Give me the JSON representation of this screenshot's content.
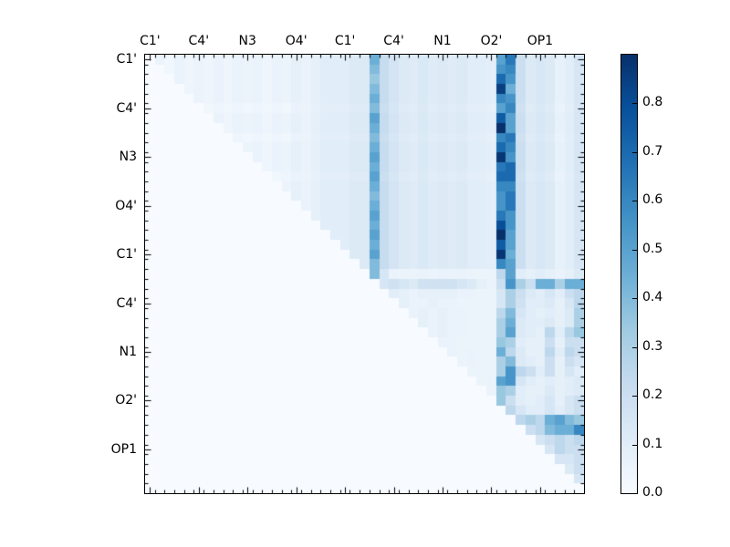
{
  "figure": {
    "background": "#ffffff"
  },
  "chart_data": {
    "type": "heatmap",
    "title": "",
    "n": 45,
    "group_size": 5,
    "x_tick_labels": [
      "C1'",
      "C4'",
      "N3",
      "O4'",
      "C1'",
      "C4'",
      "N1",
      "O2'",
      "OP1"
    ],
    "y_tick_labels": [
      "C1'",
      "C4'",
      "N3",
      "O4'",
      "C1'",
      "C4'",
      "N1",
      "O2'",
      "OP1"
    ],
    "labeled_cells": [
      0,
      5,
      10,
      15,
      20,
      25,
      30,
      35,
      40
    ],
    "vmin": 0.0,
    "vmax": 0.9,
    "colormap": "Blues",
    "colormap_stops": [
      "#f7fbff",
      "#deebf7",
      "#c6dbef",
      "#9ecae1",
      "#6baed6",
      "#4292c6",
      "#2171b5",
      "#08519c",
      "#08306b"
    ],
    "colorbar": {
      "tick_labels": [
        "0.0",
        "0.1",
        "0.2",
        "0.3",
        "0.4",
        "0.5",
        "0.6",
        "0.7",
        "0.8"
      ]
    },
    "matrix_form": "upper_triangle_rows",
    "values_upper": [
      [
        0.05,
        0.03,
        0.06,
        0.04,
        0.05,
        0.04,
        0.06,
        0.04,
        0.06,
        0.05,
        0.06,
        0.04,
        0.06,
        0.05,
        0.08,
        0.06,
        0.08,
        0.1,
        0.1,
        0.1,
        0.12,
        0.12,
        0.45,
        0.22,
        0.16,
        0.12,
        0.11,
        0.13,
        0.11,
        0.12,
        0.11,
        0.12,
        0.1,
        0.1,
        0.09,
        0.5,
        0.65,
        0.2,
        0.12,
        0.14,
        0.12,
        0.07,
        0.1,
        0.15
      ],
      [
        0.03,
        0.06,
        0.04,
        0.05,
        0.04,
        0.06,
        0.04,
        0.06,
        0.05,
        0.06,
        0.04,
        0.06,
        0.05,
        0.08,
        0.06,
        0.08,
        0.1,
        0.1,
        0.1,
        0.12,
        0.12,
        0.4,
        0.22,
        0.16,
        0.12,
        0.11,
        0.13,
        0.11,
        0.12,
        0.11,
        0.12,
        0.1,
        0.1,
        0.09,
        0.55,
        0.6,
        0.2,
        0.12,
        0.14,
        0.12,
        0.07,
        0.1,
        0.15
      ],
      [
        0.06,
        0.04,
        0.05,
        0.04,
        0.06,
        0.04,
        0.06,
        0.05,
        0.06,
        0.04,
        0.06,
        0.05,
        0.08,
        0.06,
        0.08,
        0.1,
        0.1,
        0.1,
        0.12,
        0.12,
        0.35,
        0.22,
        0.16,
        0.12,
        0.11,
        0.13,
        0.11,
        0.12,
        0.11,
        0.12,
        0.1,
        0.1,
        0.09,
        0.7,
        0.55,
        0.2,
        0.12,
        0.14,
        0.12,
        0.07,
        0.1,
        0.15
      ],
      [
        0.04,
        0.05,
        0.04,
        0.06,
        0.04,
        0.06,
        0.05,
        0.06,
        0.04,
        0.06,
        0.05,
        0.08,
        0.06,
        0.08,
        0.1,
        0.1,
        0.1,
        0.12,
        0.12,
        0.4,
        0.22,
        0.16,
        0.12,
        0.11,
        0.13,
        0.11,
        0.12,
        0.11,
        0.12,
        0.1,
        0.1,
        0.09,
        0.85,
        0.45,
        0.2,
        0.12,
        0.14,
        0.12,
        0.07,
        0.1,
        0.15
      ],
      [
        0.05,
        0.04,
        0.06,
        0.04,
        0.06,
        0.05,
        0.06,
        0.04,
        0.06,
        0.05,
        0.08,
        0.06,
        0.08,
        0.1,
        0.1,
        0.1,
        0.12,
        0.12,
        0.45,
        0.22,
        0.16,
        0.12,
        0.11,
        0.13,
        0.11,
        0.12,
        0.11,
        0.12,
        0.1,
        0.1,
        0.09,
        0.6,
        0.55,
        0.2,
        0.12,
        0.14,
        0.12,
        0.07,
        0.1,
        0.15
      ],
      [
        0.03,
        0.04,
        0.03,
        0.04,
        0.03,
        0.04,
        0.03,
        0.04,
        0.03,
        0.06,
        0.05,
        0.07,
        0.09,
        0.09,
        0.09,
        0.11,
        0.11,
        0.4,
        0.2,
        0.15,
        0.11,
        0.1,
        0.12,
        0.1,
        0.11,
        0.1,
        0.11,
        0.09,
        0.09,
        0.08,
        0.5,
        0.6,
        0.18,
        0.11,
        0.13,
        0.11,
        0.06,
        0.09,
        0.14
      ],
      [
        0.06,
        0.04,
        0.06,
        0.05,
        0.06,
        0.04,
        0.06,
        0.05,
        0.08,
        0.06,
        0.08,
        0.1,
        0.1,
        0.1,
        0.12,
        0.12,
        0.5,
        0.22,
        0.16,
        0.12,
        0.11,
        0.13,
        0.11,
        0.12,
        0.11,
        0.12,
        0.1,
        0.1,
        0.09,
        0.75,
        0.5,
        0.2,
        0.12,
        0.14,
        0.12,
        0.07,
        0.1,
        0.15
      ],
      [
        0.04,
        0.06,
        0.05,
        0.06,
        0.04,
        0.06,
        0.05,
        0.08,
        0.06,
        0.08,
        0.1,
        0.1,
        0.1,
        0.12,
        0.12,
        0.45,
        0.22,
        0.16,
        0.12,
        0.11,
        0.13,
        0.11,
        0.12,
        0.11,
        0.12,
        0.1,
        0.1,
        0.09,
        0.9,
        0.5,
        0.2,
        0.12,
        0.14,
        0.12,
        0.07,
        0.1,
        0.15
      ],
      [
        0.04,
        0.03,
        0.04,
        0.03,
        0.04,
        0.03,
        0.06,
        0.05,
        0.07,
        0.09,
        0.09,
        0.09,
        0.11,
        0.11,
        0.4,
        0.2,
        0.15,
        0.11,
        0.1,
        0.12,
        0.1,
        0.11,
        0.1,
        0.11,
        0.09,
        0.09,
        0.08,
        0.6,
        0.65,
        0.18,
        0.11,
        0.13,
        0.11,
        0.06,
        0.09,
        0.14
      ],
      [
        0.05,
        0.06,
        0.04,
        0.06,
        0.05,
        0.08,
        0.06,
        0.08,
        0.1,
        0.1,
        0.1,
        0.12,
        0.12,
        0.45,
        0.22,
        0.16,
        0.12,
        0.11,
        0.13,
        0.11,
        0.12,
        0.11,
        0.12,
        0.1,
        0.1,
        0.09,
        0.7,
        0.6,
        0.2,
        0.12,
        0.14,
        0.12,
        0.07,
        0.1,
        0.15
      ],
      [
        0.06,
        0.04,
        0.06,
        0.05,
        0.08,
        0.06,
        0.08,
        0.1,
        0.1,
        0.1,
        0.12,
        0.12,
        0.5,
        0.22,
        0.16,
        0.12,
        0.11,
        0.13,
        0.11,
        0.12,
        0.11,
        0.12,
        0.1,
        0.1,
        0.09,
        0.88,
        0.55,
        0.2,
        0.12,
        0.14,
        0.12,
        0.07,
        0.1,
        0.15
      ],
      [
        0.04,
        0.06,
        0.05,
        0.08,
        0.06,
        0.08,
        0.1,
        0.1,
        0.1,
        0.12,
        0.12,
        0.45,
        0.22,
        0.16,
        0.12,
        0.11,
        0.13,
        0.11,
        0.12,
        0.11,
        0.12,
        0.1,
        0.1,
        0.09,
        0.65,
        0.7,
        0.2,
        0.12,
        0.14,
        0.12,
        0.07,
        0.1,
        0.15
      ],
      [
        0.03,
        0.04,
        0.06,
        0.05,
        0.07,
        0.09,
        0.09,
        0.09,
        0.11,
        0.11,
        0.5,
        0.2,
        0.15,
        0.11,
        0.1,
        0.12,
        0.1,
        0.11,
        0.1,
        0.11,
        0.09,
        0.09,
        0.08,
        0.7,
        0.7,
        0.18,
        0.11,
        0.13,
        0.11,
        0.06,
        0.09,
        0.14
      ],
      [
        0.05,
        0.08,
        0.06,
        0.08,
        0.1,
        0.1,
        0.1,
        0.12,
        0.12,
        0.45,
        0.22,
        0.16,
        0.12,
        0.11,
        0.13,
        0.11,
        0.12,
        0.11,
        0.12,
        0.1,
        0.1,
        0.09,
        0.6,
        0.6,
        0.2,
        0.12,
        0.14,
        0.12,
        0.07,
        0.1,
        0.15
      ],
      [
        0.08,
        0.06,
        0.08,
        0.1,
        0.1,
        0.1,
        0.12,
        0.12,
        0.4,
        0.22,
        0.16,
        0.12,
        0.11,
        0.13,
        0.11,
        0.12,
        0.11,
        0.12,
        0.1,
        0.1,
        0.09,
        0.55,
        0.65,
        0.2,
        0.12,
        0.14,
        0.12,
        0.07,
        0.1,
        0.15
      ],
      [
        0.06,
        0.08,
        0.1,
        0.1,
        0.1,
        0.12,
        0.12,
        0.45,
        0.22,
        0.16,
        0.12,
        0.11,
        0.13,
        0.11,
        0.12,
        0.11,
        0.12,
        0.1,
        0.1,
        0.09,
        0.55,
        0.65,
        0.2,
        0.12,
        0.14,
        0.12,
        0.07,
        0.1,
        0.15
      ],
      [
        0.08,
        0.1,
        0.1,
        0.1,
        0.12,
        0.12,
        0.5,
        0.22,
        0.16,
        0.12,
        0.11,
        0.13,
        0.11,
        0.12,
        0.11,
        0.12,
        0.1,
        0.1,
        0.09,
        0.65,
        0.55,
        0.2,
        0.12,
        0.14,
        0.12,
        0.07,
        0.1,
        0.15
      ],
      [
        0.1,
        0.1,
        0.1,
        0.12,
        0.12,
        0.45,
        0.22,
        0.16,
        0.12,
        0.11,
        0.13,
        0.11,
        0.12,
        0.11,
        0.12,
        0.1,
        0.1,
        0.09,
        0.8,
        0.55,
        0.2,
        0.12,
        0.14,
        0.12,
        0.07,
        0.1,
        0.15
      ],
      [
        0.1,
        0.1,
        0.12,
        0.12,
        0.5,
        0.22,
        0.16,
        0.12,
        0.11,
        0.13,
        0.11,
        0.12,
        0.11,
        0.12,
        0.1,
        0.1,
        0.09,
        0.9,
        0.5,
        0.2,
        0.12,
        0.14,
        0.12,
        0.07,
        0.1,
        0.15
      ],
      [
        0.1,
        0.12,
        0.12,
        0.45,
        0.22,
        0.16,
        0.12,
        0.11,
        0.13,
        0.11,
        0.12,
        0.11,
        0.12,
        0.1,
        0.1,
        0.09,
        0.75,
        0.5,
        0.2,
        0.12,
        0.14,
        0.12,
        0.07,
        0.1,
        0.15
      ],
      [
        0.12,
        0.12,
        0.5,
        0.22,
        0.16,
        0.12,
        0.11,
        0.13,
        0.11,
        0.12,
        0.11,
        0.12,
        0.1,
        0.1,
        0.09,
        0.88,
        0.45,
        0.2,
        0.12,
        0.14,
        0.12,
        0.07,
        0.1,
        0.15
      ],
      [
        0.12,
        0.4,
        0.22,
        0.16,
        0.12,
        0.11,
        0.13,
        0.11,
        0.12,
        0.11,
        0.12,
        0.1,
        0.1,
        0.09,
        0.6,
        0.5,
        0.2,
        0.12,
        0.14,
        0.12,
        0.07,
        0.1,
        0.15
      ],
      [
        0.4,
        0.15,
        0.06,
        0.05,
        0.05,
        0.06,
        0.05,
        0.06,
        0.05,
        0.06,
        0.05,
        0.05,
        0.05,
        0.25,
        0.5,
        0.1,
        0.08,
        0.1,
        0.08,
        0.06,
        0.08,
        0.12
      ],
      [
        0.15,
        0.18,
        0.15,
        0.12,
        0.18,
        0.18,
        0.18,
        0.18,
        0.15,
        0.12,
        0.08,
        0.06,
        0.2,
        0.55,
        0.3,
        0.2,
        0.45,
        0.45,
        0.3,
        0.45,
        0.45
      ],
      [
        0.1,
        0.08,
        0.06,
        0.08,
        0.08,
        0.08,
        0.08,
        0.06,
        0.06,
        0.05,
        0.05,
        0.15,
        0.3,
        0.2,
        0.12,
        0.1,
        0.15,
        0.1,
        0.2,
        0.25
      ],
      [
        0.08,
        0.06,
        0.06,
        0.08,
        0.06,
        0.06,
        0.05,
        0.05,
        0.05,
        0.05,
        0.15,
        0.3,
        0.18,
        0.1,
        0.1,
        0.12,
        0.08,
        0.15,
        0.25
      ],
      [
        0.06,
        0.08,
        0.06,
        0.08,
        0.06,
        0.06,
        0.05,
        0.05,
        0.05,
        0.25,
        0.4,
        0.15,
        0.1,
        0.08,
        0.1,
        0.08,
        0.12,
        0.3
      ],
      [
        0.08,
        0.06,
        0.08,
        0.06,
        0.06,
        0.05,
        0.05,
        0.05,
        0.3,
        0.45,
        0.12,
        0.1,
        0.1,
        0.12,
        0.08,
        0.12,
        0.3
      ],
      [
        0.06,
        0.08,
        0.06,
        0.06,
        0.05,
        0.05,
        0.05,
        0.3,
        0.5,
        0.12,
        0.1,
        0.08,
        0.25,
        0.1,
        0.25,
        0.35
      ],
      [
        0.06,
        0.06,
        0.05,
        0.05,
        0.05,
        0.05,
        0.35,
        0.3,
        0.1,
        0.08,
        0.08,
        0.2,
        0.08,
        0.2,
        0.2
      ],
      [
        0.06,
        0.05,
        0.06,
        0.05,
        0.05,
        0.45,
        0.25,
        0.12,
        0.08,
        0.08,
        0.25,
        0.1,
        0.25,
        0.2
      ],
      [
        0.05,
        0.06,
        0.05,
        0.05,
        0.3,
        0.4,
        0.12,
        0.1,
        0.08,
        0.2,
        0.08,
        0.2,
        0.15
      ],
      [
        0.05,
        0.05,
        0.05,
        0.3,
        0.55,
        0.25,
        0.2,
        0.1,
        0.2,
        0.08,
        0.15,
        0.1
      ],
      [
        0.05,
        0.06,
        0.5,
        0.55,
        0.15,
        0.1,
        0.08,
        0.1,
        0.08,
        0.1,
        0.12
      ],
      [
        0.05,
        0.35,
        0.3,
        0.1,
        0.08,
        0.08,
        0.12,
        0.08,
        0.1,
        0.12
      ],
      [
        0.35,
        0.2,
        0.1,
        0.08,
        0.1,
        0.15,
        0.08,
        0.15,
        0.2
      ],
      [
        0.25,
        0.15,
        0.1,
        0.1,
        0.15,
        0.1,
        0.15,
        0.2
      ],
      [
        0.25,
        0.3,
        0.25,
        0.45,
        0.5,
        0.4,
        0.35
      ],
      [
        0.2,
        0.25,
        0.4,
        0.45,
        0.45,
        0.6
      ],
      [
        0.15,
        0.2,
        0.25,
        0.2,
        0.25
      ],
      [
        0.15,
        0.25,
        0.2,
        0.2
      ],
      [
        0.15,
        0.15,
        0.2
      ],
      [
        0.12,
        0.2
      ],
      [
        0.15
      ],
      []
    ]
  }
}
